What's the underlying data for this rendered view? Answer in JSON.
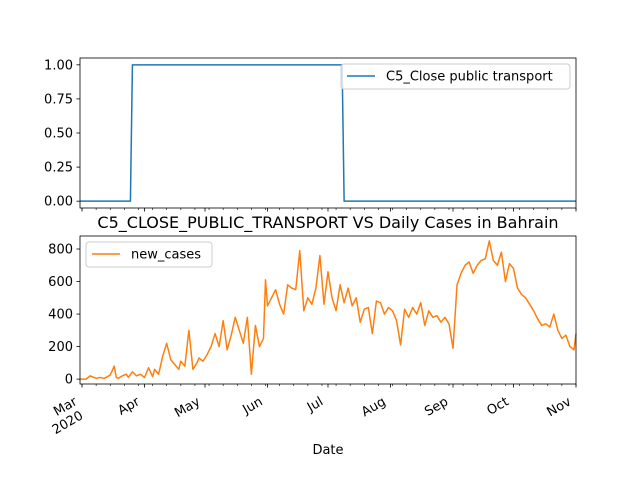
{
  "chart_data": [
    {
      "type": "line",
      "title": "",
      "xlabel": "",
      "ylabel": "",
      "ylim": [
        -0.05,
        1.05
      ],
      "xlim": [
        "2020-02-29",
        "2020-11-01"
      ],
      "yticks": [
        "0.00",
        "0.25",
        "0.50",
        "0.75",
        "1.00"
      ],
      "ytick_values": [
        0,
        0.25,
        0.5,
        0.75,
        1.0
      ],
      "legend": "top-right",
      "series": [
        {
          "name": "C5_Close public transport",
          "color": "#1f77b4",
          "x": [
            "2020-02-29",
            "2020-03-25",
            "2020-03-26",
            "2020-07-08",
            "2020-07-09",
            "2020-11-01"
          ],
          "y": [
            0,
            0,
            1,
            1,
            0,
            0
          ]
        }
      ]
    },
    {
      "type": "line",
      "title": "C5_CLOSE_PUBLIC_TRANSPORT VS Daily Cases in Bahrain",
      "xlabel": "Date",
      "ylabel": "",
      "ylim": [
        -30,
        880
      ],
      "xlim": [
        "2020-02-29",
        "2020-11-01"
      ],
      "yticks": [
        "0",
        "200",
        "400",
        "600",
        "800"
      ],
      "ytick_values": [
        0,
        200,
        400,
        600,
        800
      ],
      "xtick_labels": [
        {
          "label": "Mar",
          "sub": "2020",
          "date": "2020-03-01"
        },
        {
          "label": "Apr",
          "sub": "",
          "date": "2020-04-01"
        },
        {
          "label": "May",
          "sub": "",
          "date": "2020-05-01"
        },
        {
          "label": "Jun",
          "sub": "",
          "date": "2020-06-01"
        },
        {
          "label": "Jul",
          "sub": "",
          "date": "2020-07-01"
        },
        {
          "label": "Aug",
          "sub": "",
          "date": "2020-08-01"
        },
        {
          "label": "Sep",
          "sub": "",
          "date": "2020-09-01"
        },
        {
          "label": "Oct",
          "sub": "",
          "date": "2020-10-01"
        },
        {
          "label": "Nov",
          "sub": "",
          "date": "2020-11-01"
        }
      ],
      "legend": "top-left",
      "series": [
        {
          "name": "new_cases",
          "color": "#ff7f0e",
          "x": [
            "2020-02-29",
            "2020-03-03",
            "2020-03-05",
            "2020-03-08",
            "2020-03-10",
            "2020-03-12",
            "2020-03-15",
            "2020-03-17",
            "2020-03-18",
            "2020-03-19",
            "2020-03-21",
            "2020-03-23",
            "2020-03-24",
            "2020-03-26",
            "2020-03-28",
            "2020-03-30",
            "2020-04-01",
            "2020-04-03",
            "2020-04-05",
            "2020-04-06",
            "2020-04-08",
            "2020-04-10",
            "2020-04-12",
            "2020-04-14",
            "2020-04-16",
            "2020-04-18",
            "2020-04-19",
            "2020-04-21",
            "2020-04-23",
            "2020-04-25",
            "2020-04-27",
            "2020-04-28",
            "2020-04-30",
            "2020-05-02",
            "2020-05-04",
            "2020-05-06",
            "2020-05-08",
            "2020-05-10",
            "2020-05-12",
            "2020-05-14",
            "2020-05-16",
            "2020-05-18",
            "2020-05-20",
            "2020-05-22",
            "2020-05-24",
            "2020-05-26",
            "2020-05-28",
            "2020-05-30",
            "2020-05-31",
            "2020-06-01",
            "2020-06-03",
            "2020-06-05",
            "2020-06-07",
            "2020-06-09",
            "2020-06-11",
            "2020-06-13",
            "2020-06-15",
            "2020-06-17",
            "2020-06-19",
            "2020-06-21",
            "2020-06-23",
            "2020-06-25",
            "2020-06-27",
            "2020-06-29",
            "2020-07-01",
            "2020-07-03",
            "2020-07-05",
            "2020-07-07",
            "2020-07-09",
            "2020-07-11",
            "2020-07-13",
            "2020-07-15",
            "2020-07-17",
            "2020-07-19",
            "2020-07-21",
            "2020-07-23",
            "2020-07-25",
            "2020-07-27",
            "2020-07-29",
            "2020-07-31",
            "2020-08-02",
            "2020-08-04",
            "2020-08-06",
            "2020-08-08",
            "2020-08-10",
            "2020-08-12",
            "2020-08-14",
            "2020-08-16",
            "2020-08-18",
            "2020-08-20",
            "2020-08-22",
            "2020-08-24",
            "2020-08-26",
            "2020-08-28",
            "2020-08-30",
            "2020-09-01",
            "2020-09-03",
            "2020-09-05",
            "2020-09-07",
            "2020-09-09",
            "2020-09-11",
            "2020-09-13",
            "2020-09-15",
            "2020-09-17",
            "2020-09-19",
            "2020-09-21",
            "2020-09-23",
            "2020-09-25",
            "2020-09-27",
            "2020-09-29",
            "2020-10-01",
            "2020-10-03",
            "2020-10-05",
            "2020-10-07",
            "2020-10-09",
            "2020-10-11",
            "2020-10-13",
            "2020-10-15",
            "2020-10-17",
            "2020-10-19",
            "2020-10-21",
            "2020-10-23",
            "2020-10-25",
            "2020-10-27",
            "2020-10-29",
            "2020-10-31",
            "2020-11-01"
          ],
          "y": [
            0,
            0,
            20,
            5,
            10,
            5,
            25,
            80,
            10,
            5,
            20,
            30,
            10,
            45,
            20,
            30,
            10,
            70,
            15,
            60,
            30,
            140,
            220,
            120,
            90,
            60,
            110,
            80,
            300,
            60,
            100,
            130,
            110,
            150,
            200,
            280,
            200,
            360,
            180,
            270,
            380,
            300,
            220,
            380,
            30,
            330,
            200,
            250,
            610,
            450,
            500,
            550,
            460,
            400,
            580,
            560,
            550,
            790,
            420,
            500,
            460,
            560,
            760,
            460,
            660,
            500,
            420,
            580,
            470,
            560,
            450,
            500,
            350,
            430,
            440,
            280,
            480,
            470,
            400,
            440,
            420,
            360,
            210,
            430,
            380,
            440,
            400,
            470,
            330,
            420,
            380,
            390,
            350,
            380,
            340,
            190,
            580,
            650,
            700,
            720,
            650,
            700,
            730,
            740,
            850,
            730,
            700,
            780,
            600,
            710,
            680,
            560,
            520,
            500,
            460,
            420,
            370,
            330,
            340,
            320,
            400,
            300,
            250,
            270,
            200,
            180,
            280
          ]
        }
      ]
    }
  ]
}
